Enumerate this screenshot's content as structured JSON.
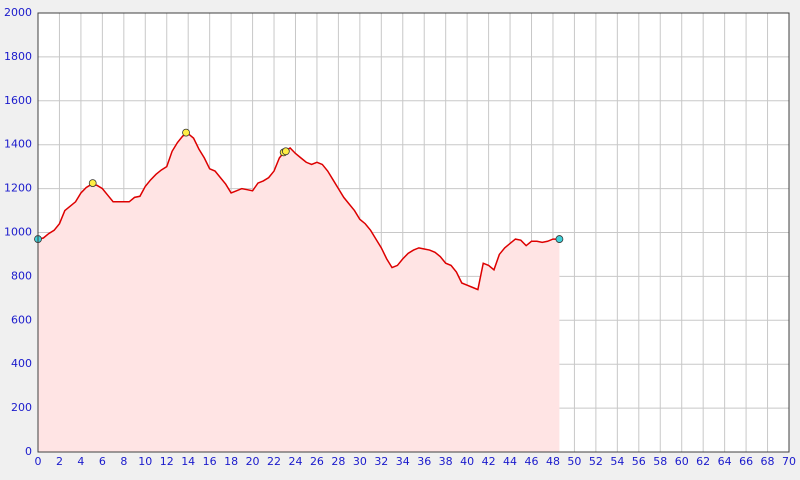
{
  "chart_data": {
    "type": "line",
    "x": [
      0,
      0.5,
      1,
      1.5,
      2,
      2.5,
      3,
      3.5,
      4,
      4.5,
      5,
      5.5,
      6,
      6.5,
      7,
      7.5,
      8,
      8.5,
      9,
      9.5,
      10,
      10.5,
      11,
      11.5,
      12,
      12.5,
      13,
      13.5,
      14,
      14.5,
      15,
      15.5,
      16,
      16.5,
      17,
      17.5,
      18,
      18.5,
      19,
      19.5,
      20,
      20.5,
      21,
      21.5,
      22,
      22.5,
      23,
      23.5,
      24,
      24.5,
      25,
      25.5,
      26,
      26.5,
      27,
      27.5,
      28,
      28.5,
      29,
      29.5,
      30,
      30.5,
      31,
      31.5,
      32,
      32.5,
      33,
      33.5,
      34,
      34.5,
      35,
      35.5,
      36,
      36.5,
      37,
      37.5,
      38,
      38.5,
      39,
      39.5,
      40,
      40.5,
      41,
      41.5,
      42,
      42.5,
      43,
      43.5,
      44,
      44.5,
      45,
      45.5,
      46,
      46.5,
      47,
      47.5,
      48,
      48.6
    ],
    "values": [
      970,
      975,
      995,
      1010,
      1040,
      1100,
      1120,
      1140,
      1180,
      1205,
      1220,
      1215,
      1200,
      1170,
      1140,
      1140,
      1140,
      1140,
      1160,
      1165,
      1210,
      1240,
      1265,
      1285,
      1300,
      1370,
      1410,
      1440,
      1450,
      1430,
      1380,
      1340,
      1290,
      1280,
      1250,
      1220,
      1180,
      1190,
      1200,
      1195,
      1190,
      1225,
      1235,
      1250,
      1280,
      1340,
      1370,
      1385,
      1360,
      1340,
      1320,
      1310,
      1320,
      1310,
      1280,
      1240,
      1200,
      1160,
      1130,
      1100,
      1060,
      1040,
      1010,
      970,
      930,
      880,
      840,
      850,
      880,
      905,
      920,
      930,
      925,
      920,
      910,
      890,
      860,
      850,
      820,
      770,
      760,
      750,
      740,
      860,
      850,
      830,
      900,
      930,
      950,
      970,
      965,
      940,
      960,
      960,
      955,
      960,
      970,
      970
    ],
    "color": "#dd0000",
    "fill": "#ffe4e4",
    "markers": [
      {
        "color": "#40d0d8",
        "x": [
          0,
          48.6
        ],
        "values": [
          970,
          970
        ]
      },
      {
        "color": "#ffee44",
        "x": [
          5.1,
          13.8,
          22.9,
          23.1
        ],
        "values": [
          1225,
          1455,
          1365,
          1370
        ]
      }
    ],
    "xlim": [
      0,
      70
    ],
    "xticks": [
      0,
      2,
      4,
      6,
      8,
      10,
      12,
      14,
      16,
      18,
      20,
      22,
      24,
      26,
      28,
      30,
      32,
      34,
      36,
      38,
      40,
      42,
      44,
      46,
      48,
      50,
      52,
      54,
      56,
      58,
      60,
      62,
      64,
      66,
      68,
      70
    ],
    "ylim": [
      0,
      2000
    ],
    "yticks": [
      0,
      200,
      400,
      600,
      800,
      1000,
      1200,
      1400,
      1600,
      1800,
      2000
    ],
    "grid": true
  }
}
